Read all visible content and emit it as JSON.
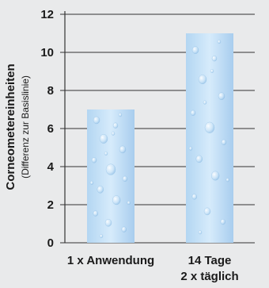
{
  "chart_data": {
    "type": "bar",
    "categories": [
      [
        "1 x Anwendung"
      ],
      [
        "14 Tage",
        "2 x täglich"
      ]
    ],
    "values": [
      7,
      11
    ],
    "ylabel": "Corneometereinheiten",
    "ylabel_sub": "(Differenz zur Basislinie)",
    "xlabel": "",
    "ylim": [
      0,
      12
    ],
    "yticks": [
      0,
      2,
      4,
      6,
      8,
      10,
      12
    ],
    "grid": "horizontal",
    "bar_fill": "light blue with water droplet texture",
    "colors": {
      "background": "#e9eaeb",
      "bar_light": "#d9ecfa",
      "bar_mid": "#a9d0f0",
      "axis": "#333333",
      "text": "#1a1a1a"
    }
  }
}
